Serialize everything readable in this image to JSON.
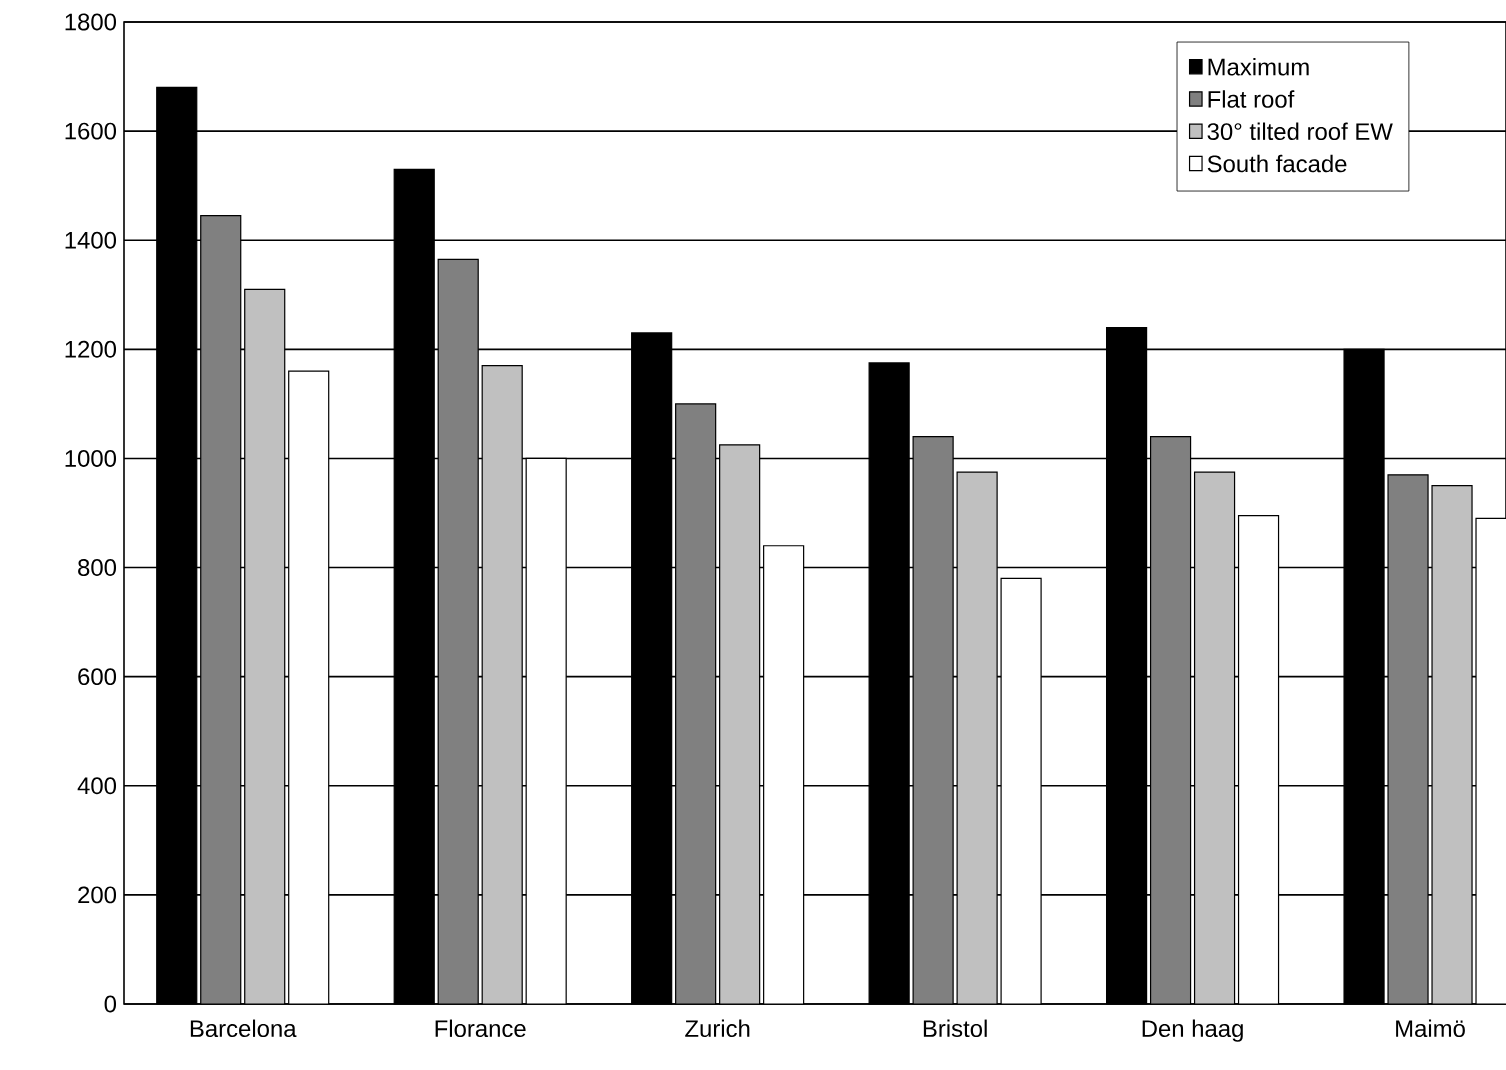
{
  "chart_data": {
    "type": "bar",
    "categories": [
      "Barcelona",
      "Florance",
      "Zurich",
      "Bristol",
      "Den haag",
      "Maimö"
    ],
    "series": [
      {
        "name": "Maximum",
        "color": "#000000",
        "values": [
          1680,
          1530,
          1230,
          1175,
          1240,
          1200
        ]
      },
      {
        "name": "Flat roof",
        "color": "#808080",
        "values": [
          1445,
          1365,
          1100,
          1040,
          1040,
          970
        ]
      },
      {
        "name": "30° tilted roof EW",
        "color": "#c0c0c0",
        "values": [
          1310,
          1170,
          1025,
          975,
          975,
          950
        ]
      },
      {
        "name": "South facade",
        "color": "#ffffff",
        "values": [
          1160,
          1000,
          840,
          780,
          895,
          890
        ]
      }
    ],
    "ylim": [
      0,
      1800
    ],
    "yticks": [
      0,
      200,
      400,
      600,
      800,
      1000,
      1200,
      1400,
      1600,
      1800
    ],
    "grid": "y",
    "legend": "top right"
  }
}
